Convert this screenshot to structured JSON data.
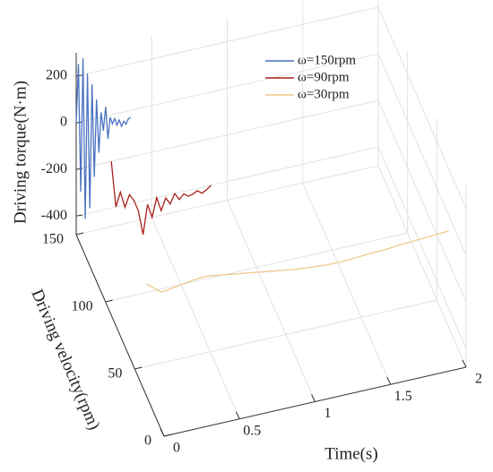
{
  "chart_data": {
    "type": "line3d",
    "xlabel": "Time(s)",
    "ylabel": "Driving velocity(rpm)",
    "zlabel": "Driving torque(N·m)",
    "xlim": [
      0,
      2
    ],
    "xticks": [
      0,
      0.5,
      1,
      1.5,
      2
    ],
    "ylim": [
      0,
      150
    ],
    "yticks": [
      0,
      50,
      100,
      150
    ],
    "zlim": [
      -480,
      300
    ],
    "zticks": [
      -400,
      -200,
      0,
      200
    ],
    "grid": true,
    "legend": "upper right",
    "series": [
      {
        "name": "ω=150rpm",
        "color": "#4a72c0",
        "velocity": 150,
        "x": [
          0,
          0.015,
          0.03,
          0.045,
          0.06,
          0.075,
          0.09,
          0.105,
          0.12,
          0.135,
          0.15,
          0.165,
          0.18,
          0.195,
          0.21,
          0.225,
          0.24,
          0.255,
          0.27,
          0.285,
          0.3,
          0.315,
          0.33,
          0.345,
          0.36
        ],
        "values": [
          0,
          250,
          -300,
          270,
          -420,
          200,
          -380,
          150,
          -250,
          80,
          -150,
          20,
          -60,
          40,
          -100,
          -10,
          -40,
          -20,
          -50,
          -30,
          -60,
          -40,
          -55,
          -35,
          -30
        ]
      },
      {
        "name": "ω=90rpm",
        "color": "#a8201a",
        "velocity": 90,
        "x": [
          0,
          0.03,
          0.06,
          0.09,
          0.12,
          0.15,
          0.18,
          0.21,
          0.24,
          0.27,
          0.3,
          0.33,
          0.36,
          0.39,
          0.42,
          0.45,
          0.48,
          0.51,
          0.54,
          0.57,
          0.6,
          0.63,
          0.66
        ],
        "values": [
          180,
          -20,
          40,
          -30,
          20,
          -10,
          -60,
          -165,
          -40,
          -100,
          -20,
          -80,
          -30,
          -60,
          -20,
          -50,
          -30,
          -45,
          -40,
          -30,
          -45,
          -35,
          -20
        ]
      },
      {
        "name": "ω=30rpm",
        "color": "#f0c88a",
        "velocity": 30,
        "x": [
          0,
          0.1,
          0.2,
          0.3,
          0.4,
          0.5,
          0.6,
          0.7,
          0.8,
          0.9,
          1,
          1.1,
          1.2,
          1.3,
          1.4,
          1.5,
          1.6,
          1.7,
          1.8,
          1.9,
          2
        ],
        "values": [
          0,
          -50,
          -40,
          -30,
          -25,
          -35,
          -45,
          -55,
          -65,
          -75,
          -84,
          -90,
          -95,
          -95,
          -92,
          -88,
          -85,
          -80,
          -76,
          -72,
          -69
        ]
      }
    ]
  }
}
